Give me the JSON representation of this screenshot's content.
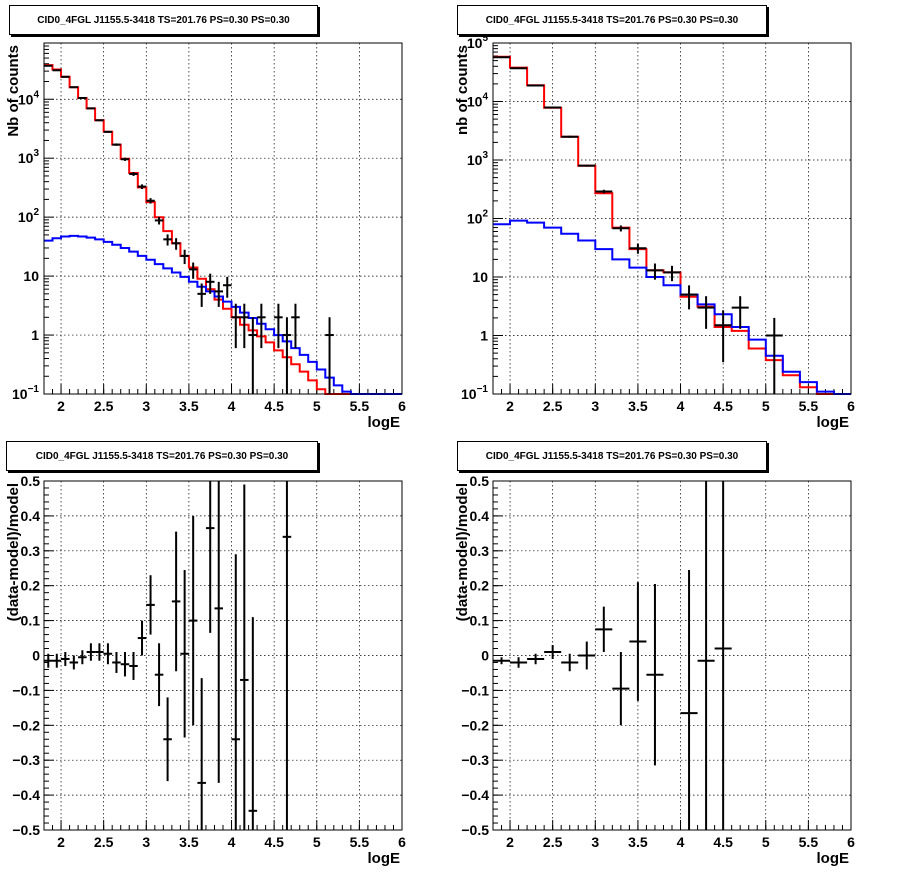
{
  "chart_data": [
    {
      "id": "p1",
      "type": "histogram-log",
      "title": "CID0_4FGL J1155.5-3418 TS=201.76 PS=0.30 PS=0.30",
      "xlabel": "logE",
      "ylabel": "Nb of counts",
      "xlim": [
        1.8,
        6
      ],
      "ylim": [
        0.1,
        90000
      ],
      "xticks": [
        2,
        2.5,
        3,
        3.5,
        4,
        4.5,
        5,
        5.5,
        6
      ],
      "yticks": [
        {
          "v": 0.1,
          "label": "10",
          "sup": "−1"
        },
        {
          "v": 1,
          "label": "1",
          "sup": ""
        },
        {
          "v": 10,
          "label": "10",
          "sup": ""
        },
        {
          "v": 100,
          "label": "10",
          "sup": "2"
        },
        {
          "v": 1000,
          "label": "10",
          "sup": "3"
        },
        {
          "v": 10000,
          "label": "10",
          "sup": "4"
        }
      ],
      "bins": [
        1.8,
        1.9,
        2.0,
        2.1,
        2.2,
        2.3,
        2.4,
        2.5,
        2.6,
        2.7,
        2.8,
        2.9,
        3.0,
        3.1,
        3.2,
        3.3,
        3.4,
        3.5,
        3.6,
        3.7,
        3.8,
        3.9,
        4.0,
        4.1,
        4.2,
        4.3,
        4.4,
        4.5,
        4.6,
        4.7,
        4.8,
        4.9,
        5.0,
        5.1,
        5.2,
        5.3,
        5.4,
        5.5,
        5.6,
        5.7,
        5.8,
        5.9,
        6.0
      ],
      "series": [
        {
          "color": "#000000",
          "style": "black",
          "values": [
            38000,
            32000,
            24000,
            16000,
            10500,
            7000,
            4400,
            2800,
            1700,
            980,
            560,
            320,
            180,
            100,
            58,
            36,
            22,
            14,
            9,
            6,
            4,
            2.8,
            2.0,
            1.5,
            1.2,
            0.95,
            0.75,
            0.55,
            0.42,
            0.32,
            0.24,
            0.17,
            0.12,
            0.09,
            0.07,
            0.06,
            0.05,
            0.04,
            0.03,
            0.03,
            0.03,
            0.03
          ]
        },
        {
          "color": "#ff0000",
          "style": "red",
          "values": [
            38000,
            32000,
            24000,
            16000,
            10500,
            7000,
            4400,
            2800,
            1700,
            980,
            560,
            320,
            180,
            100,
            58,
            36,
            22,
            14,
            9,
            6,
            4,
            2.8,
            2.0,
            1.5,
            1.2,
            0.95,
            0.75,
            0.55,
            0.42,
            0.32,
            0.24,
            0.17,
            0.12,
            0.09,
            0.07,
            0.06,
            0.05,
            0.04,
            0.03,
            0.03,
            0.03,
            0.03
          ]
        },
        {
          "color": "#0000ff",
          "style": "blue",
          "values": [
            40,
            44,
            47,
            48,
            47,
            45,
            42,
            38,
            34,
            30,
            26,
            22,
            19,
            16,
            13.5,
            11.5,
            9.7,
            8,
            6.6,
            5.5,
            4.5,
            3.7,
            3.0,
            2.4,
            1.95,
            1.55,
            1.25,
            1.0,
            0.78,
            0.6,
            0.46,
            0.35,
            0.26,
            0.19,
            0.14,
            0.11,
            0.1,
            0.1,
            0.1,
            0.1,
            0.1,
            0.1
          ]
        }
      ],
      "points": [
        {
          "x": 1.85,
          "y": 37000,
          "lo": 36500,
          "hi": 37500
        },
        {
          "x": 1.95,
          "y": 31000,
          "lo": 30600,
          "hi": 31400
        },
        {
          "x": 2.05,
          "y": 24000,
          "lo": 23700,
          "hi": 24300
        },
        {
          "x": 2.15,
          "y": 16000,
          "lo": 15800,
          "hi": 16200
        },
        {
          "x": 2.25,
          "y": 10500,
          "lo": 10300,
          "hi": 10700
        },
        {
          "x": 2.35,
          "y": 7000,
          "lo": 6850,
          "hi": 7150
        },
        {
          "x": 2.45,
          "y": 4400,
          "lo": 4270,
          "hi": 4530
        },
        {
          "x": 2.55,
          "y": 2800,
          "lo": 2700,
          "hi": 2900
        },
        {
          "x": 2.65,
          "y": 1700,
          "lo": 1620,
          "hi": 1780
        },
        {
          "x": 2.75,
          "y": 960,
          "lo": 900,
          "hi": 1020
        },
        {
          "x": 2.85,
          "y": 540,
          "lo": 500,
          "hi": 580
        },
        {
          "x": 2.95,
          "y": 330,
          "lo": 300,
          "hi": 360
        },
        {
          "x": 3.05,
          "y": 190,
          "lo": 170,
          "hi": 210
        },
        {
          "x": 3.15,
          "y": 88,
          "lo": 75,
          "hi": 101
        },
        {
          "x": 3.25,
          "y": 42,
          "lo": 33,
          "hi": 51
        },
        {
          "x": 3.35,
          "y": 36,
          "lo": 28,
          "hi": 44
        },
        {
          "x": 3.45,
          "y": 22,
          "lo": 16,
          "hi": 28
        },
        {
          "x": 3.55,
          "y": 13,
          "lo": 9,
          "hi": 17
        },
        {
          "x": 3.65,
          "y": 5,
          "lo": 3,
          "hi": 7.5
        },
        {
          "x": 3.75,
          "y": 8,
          "lo": 5,
          "hi": 11
        },
        {
          "x": 3.85,
          "y": 5.5,
          "lo": 3,
          "hi": 8
        },
        {
          "x": 3.95,
          "y": 7,
          "lo": 4.3,
          "hi": 9.7
        },
        {
          "x": 4.05,
          "y": 2,
          "lo": 0.6,
          "hi": 3.4
        },
        {
          "x": 4.15,
          "y": 2,
          "lo": 0.6,
          "hi": 3.4
        },
        {
          "x": 4.25,
          "y": 1,
          "lo": 0.1,
          "hi": 2
        },
        {
          "x": 4.35,
          "y": 2,
          "lo": 0.6,
          "hi": 3.4
        },
        {
          "x": 4.55,
          "y": 2,
          "lo": 0.6,
          "hi": 3.4
        },
        {
          "x": 4.65,
          "y": 1,
          "lo": 0.1,
          "hi": 2
        },
        {
          "x": 4.75,
          "y": 2,
          "lo": 0.6,
          "hi": 3.4
        },
        {
          "x": 5.15,
          "y": 1,
          "lo": 0.1,
          "hi": 2
        }
      ]
    },
    {
      "id": "p2",
      "type": "histogram-log",
      "title": "CID0_4FGL J1155.5-3418 TS=201.76 PS=0.30 PS=0.30",
      "xlabel": "logE",
      "ylabel": "nb of counts",
      "xlim": [
        1.8,
        6
      ],
      "ylim": [
        0.1,
        100000
      ],
      "xticks": [
        2,
        2.5,
        3,
        3.5,
        4,
        4.5,
        5,
        5.5,
        6
      ],
      "yticks": [
        {
          "v": 0.1,
          "label": "10",
          "sup": "−1"
        },
        {
          "v": 1,
          "label": "1",
          "sup": ""
        },
        {
          "v": 10,
          "label": "10",
          "sup": ""
        },
        {
          "v": 100,
          "label": "10",
          "sup": "2"
        },
        {
          "v": 1000,
          "label": "10",
          "sup": "3"
        },
        {
          "v": 10000,
          "label": "10",
          "sup": "4"
        },
        {
          "v": 100000,
          "label": "10",
          "sup": "5"
        }
      ],
      "bins": [
        1.8,
        2.0,
        2.2,
        2.4,
        2.6,
        2.8,
        3.0,
        3.2,
        3.4,
        3.6,
        3.8,
        4.0,
        4.2,
        4.4,
        4.6,
        4.8,
        5.0,
        5.2,
        5.4,
        5.6,
        5.8,
        6.0
      ],
      "series": [
        {
          "color": "#000000",
          "style": "black",
          "values": [
            58000,
            38000,
            19000,
            7800,
            2500,
            800,
            270,
            70,
            30,
            13,
            12,
            4.6,
            3.1,
            1.4,
            1.2,
            0.6,
            0.38,
            0.21,
            0.13,
            0.1,
            0.1
          ]
        },
        {
          "color": "#ff0000",
          "style": "red",
          "values": [
            58000,
            38000,
            19000,
            7800,
            2500,
            800,
            270,
            70,
            30,
            13,
            12,
            4.6,
            3.1,
            1.4,
            1.2,
            0.6,
            0.38,
            0.21,
            0.13,
            0.1,
            0.1
          ]
        },
        {
          "color": "#0000ff",
          "style": "blue",
          "values": [
            80,
            92,
            85,
            70,
            55,
            42,
            30,
            20,
            14.5,
            10,
            7.2,
            5,
            3.4,
            2.3,
            1.4,
            0.85,
            0.45,
            0.24,
            0.16,
            0.11,
            0.1
          ]
        }
      ],
      "points": [
        {
          "x": 1.9,
          "y": 57000,
          "lo": 56500,
          "hi": 57500
        },
        {
          "x": 2.1,
          "y": 37000,
          "lo": 36600,
          "hi": 37400
        },
        {
          "x": 2.3,
          "y": 18800,
          "lo": 18500,
          "hi": 19100
        },
        {
          "x": 2.5,
          "y": 7900,
          "lo": 7700,
          "hi": 8100
        },
        {
          "x": 2.7,
          "y": 2500,
          "lo": 2400,
          "hi": 2600
        },
        {
          "x": 2.9,
          "y": 800,
          "lo": 770,
          "hi": 830
        },
        {
          "x": 3.1,
          "y": 290,
          "lo": 270,
          "hi": 310
        },
        {
          "x": 3.3,
          "y": 68,
          "lo": 60,
          "hi": 76
        },
        {
          "x": 3.5,
          "y": 31,
          "lo": 25,
          "hi": 37
        },
        {
          "x": 3.7,
          "y": 13,
          "lo": 9,
          "hi": 17
        },
        {
          "x": 3.9,
          "y": 12,
          "lo": 8.5,
          "hi": 15.5
        },
        {
          "x": 4.1,
          "y": 5,
          "lo": 2.8,
          "hi": 7.2
        },
        {
          "x": 4.3,
          "y": 3,
          "lo": 1.3,
          "hi": 4.7
        },
        {
          "x": 4.5,
          "y": 1.5,
          "lo": 0.35,
          "hi": 2.7
        },
        {
          "x": 4.7,
          "y": 3,
          "lo": 1.3,
          "hi": 4.7
        },
        {
          "x": 5.1,
          "y": 1,
          "lo": 0.1,
          "hi": 2
        }
      ]
    },
    {
      "id": "p3",
      "type": "residual",
      "title": "CID0_4FGL J1155.5-3418 TS=201.76 PS=0.30 PS=0.30",
      "xlabel": "logE",
      "ylabel": "(data-model)/model",
      "xlim": [
        1.8,
        6
      ],
      "ylim": [
        -0.5,
        0.5
      ],
      "xticks": [
        2,
        2.5,
        3,
        3.5,
        4,
        4.5,
        5,
        5.5,
        6
      ],
      "yticks": [
        -0.5,
        -0.4,
        -0.3,
        -0.2,
        -0.1,
        0,
        0.1,
        0.2,
        0.3,
        0.4,
        0.5
      ],
      "half_width": 0.05,
      "points": [
        {
          "x": 1.85,
          "y": -0.015,
          "e": 0.02
        },
        {
          "x": 1.95,
          "y": -0.015,
          "e": 0.02
        },
        {
          "x": 2.05,
          "y": -0.01,
          "e": 0.02
        },
        {
          "x": 2.15,
          "y": -0.02,
          "e": 0.02
        },
        {
          "x": 2.25,
          "y": -0.005,
          "e": 0.02
        },
        {
          "x": 2.35,
          "y": 0.01,
          "e": 0.025
        },
        {
          "x": 2.45,
          "y": 0.01,
          "e": 0.025
        },
        {
          "x": 2.55,
          "y": 0.005,
          "e": 0.03
        },
        {
          "x": 2.65,
          "y": -0.02,
          "e": 0.03
        },
        {
          "x": 2.75,
          "y": -0.025,
          "e": 0.035
        },
        {
          "x": 2.85,
          "y": -0.03,
          "e": 0.04
        },
        {
          "x": 2.95,
          "y": 0.05,
          "e": 0.05
        },
        {
          "x": 3.05,
          "y": 0.145,
          "e": 0.085
        },
        {
          "x": 3.15,
          "y": -0.055,
          "e": 0.09
        },
        {
          "x": 3.25,
          "y": -0.24,
          "e": 0.12
        },
        {
          "x": 3.35,
          "y": 0.155,
          "e": 0.2
        },
        {
          "x": 3.45,
          "y": 0.005,
          "e": 0.24
        },
        {
          "x": 3.55,
          "y": 0.1,
          "e": 0.3
        },
        {
          "x": 3.65,
          "y": -0.365,
          "e": 0.3
        },
        {
          "x": 3.75,
          "y": 0.365,
          "e": 0.3
        },
        {
          "x": 3.85,
          "y": 0.135,
          "e": 0.5
        },
        {
          "x": 4.05,
          "y": -0.24,
          "e": 0.53
        },
        {
          "x": 4.15,
          "y": -0.07,
          "e": 0.56
        },
        {
          "x": 4.25,
          "y": -0.445,
          "e": 0.555
        },
        {
          "x": 4.65,
          "y": 0.34,
          "e": 0.9
        }
      ]
    },
    {
      "id": "p4",
      "type": "residual",
      "title": "CID0_4FGL J1155.5-3418 TS=201.76 PS=0.30 PS=0.30",
      "xlabel": "logE",
      "ylabel": "(data-model)/model",
      "xlim": [
        1.8,
        6
      ],
      "ylim": [
        -0.5,
        0.5
      ],
      "xticks": [
        2,
        2.5,
        3,
        3.5,
        4,
        4.5,
        5,
        5.5,
        6
      ],
      "yticks": [
        -0.5,
        -0.4,
        -0.3,
        -0.2,
        -0.1,
        0,
        0.1,
        0.2,
        0.3,
        0.4,
        0.5
      ],
      "half_width": 0.1,
      "points": [
        {
          "x": 1.9,
          "y": -0.015,
          "e": 0.01
        },
        {
          "x": 2.1,
          "y": -0.02,
          "e": 0.015
        },
        {
          "x": 2.3,
          "y": -0.01,
          "e": 0.015
        },
        {
          "x": 2.5,
          "y": 0.01,
          "e": 0.02
        },
        {
          "x": 2.7,
          "y": -0.02,
          "e": 0.025
        },
        {
          "x": 2.9,
          "y": 0.0,
          "e": 0.04
        },
        {
          "x": 3.1,
          "y": 0.075,
          "e": 0.065
        },
        {
          "x": 3.3,
          "y": -0.095,
          "e": 0.105
        },
        {
          "x": 3.5,
          "y": 0.04,
          "e": 0.17
        },
        {
          "x": 3.7,
          "y": -0.055,
          "e": 0.26
        },
        {
          "x": 4.1,
          "y": -0.165,
          "e": 0.41
        },
        {
          "x": 4.3,
          "y": -0.015,
          "e": 0.6
        },
        {
          "x": 4.5,
          "y": 0.02,
          "e": 0.8
        }
      ]
    }
  ]
}
